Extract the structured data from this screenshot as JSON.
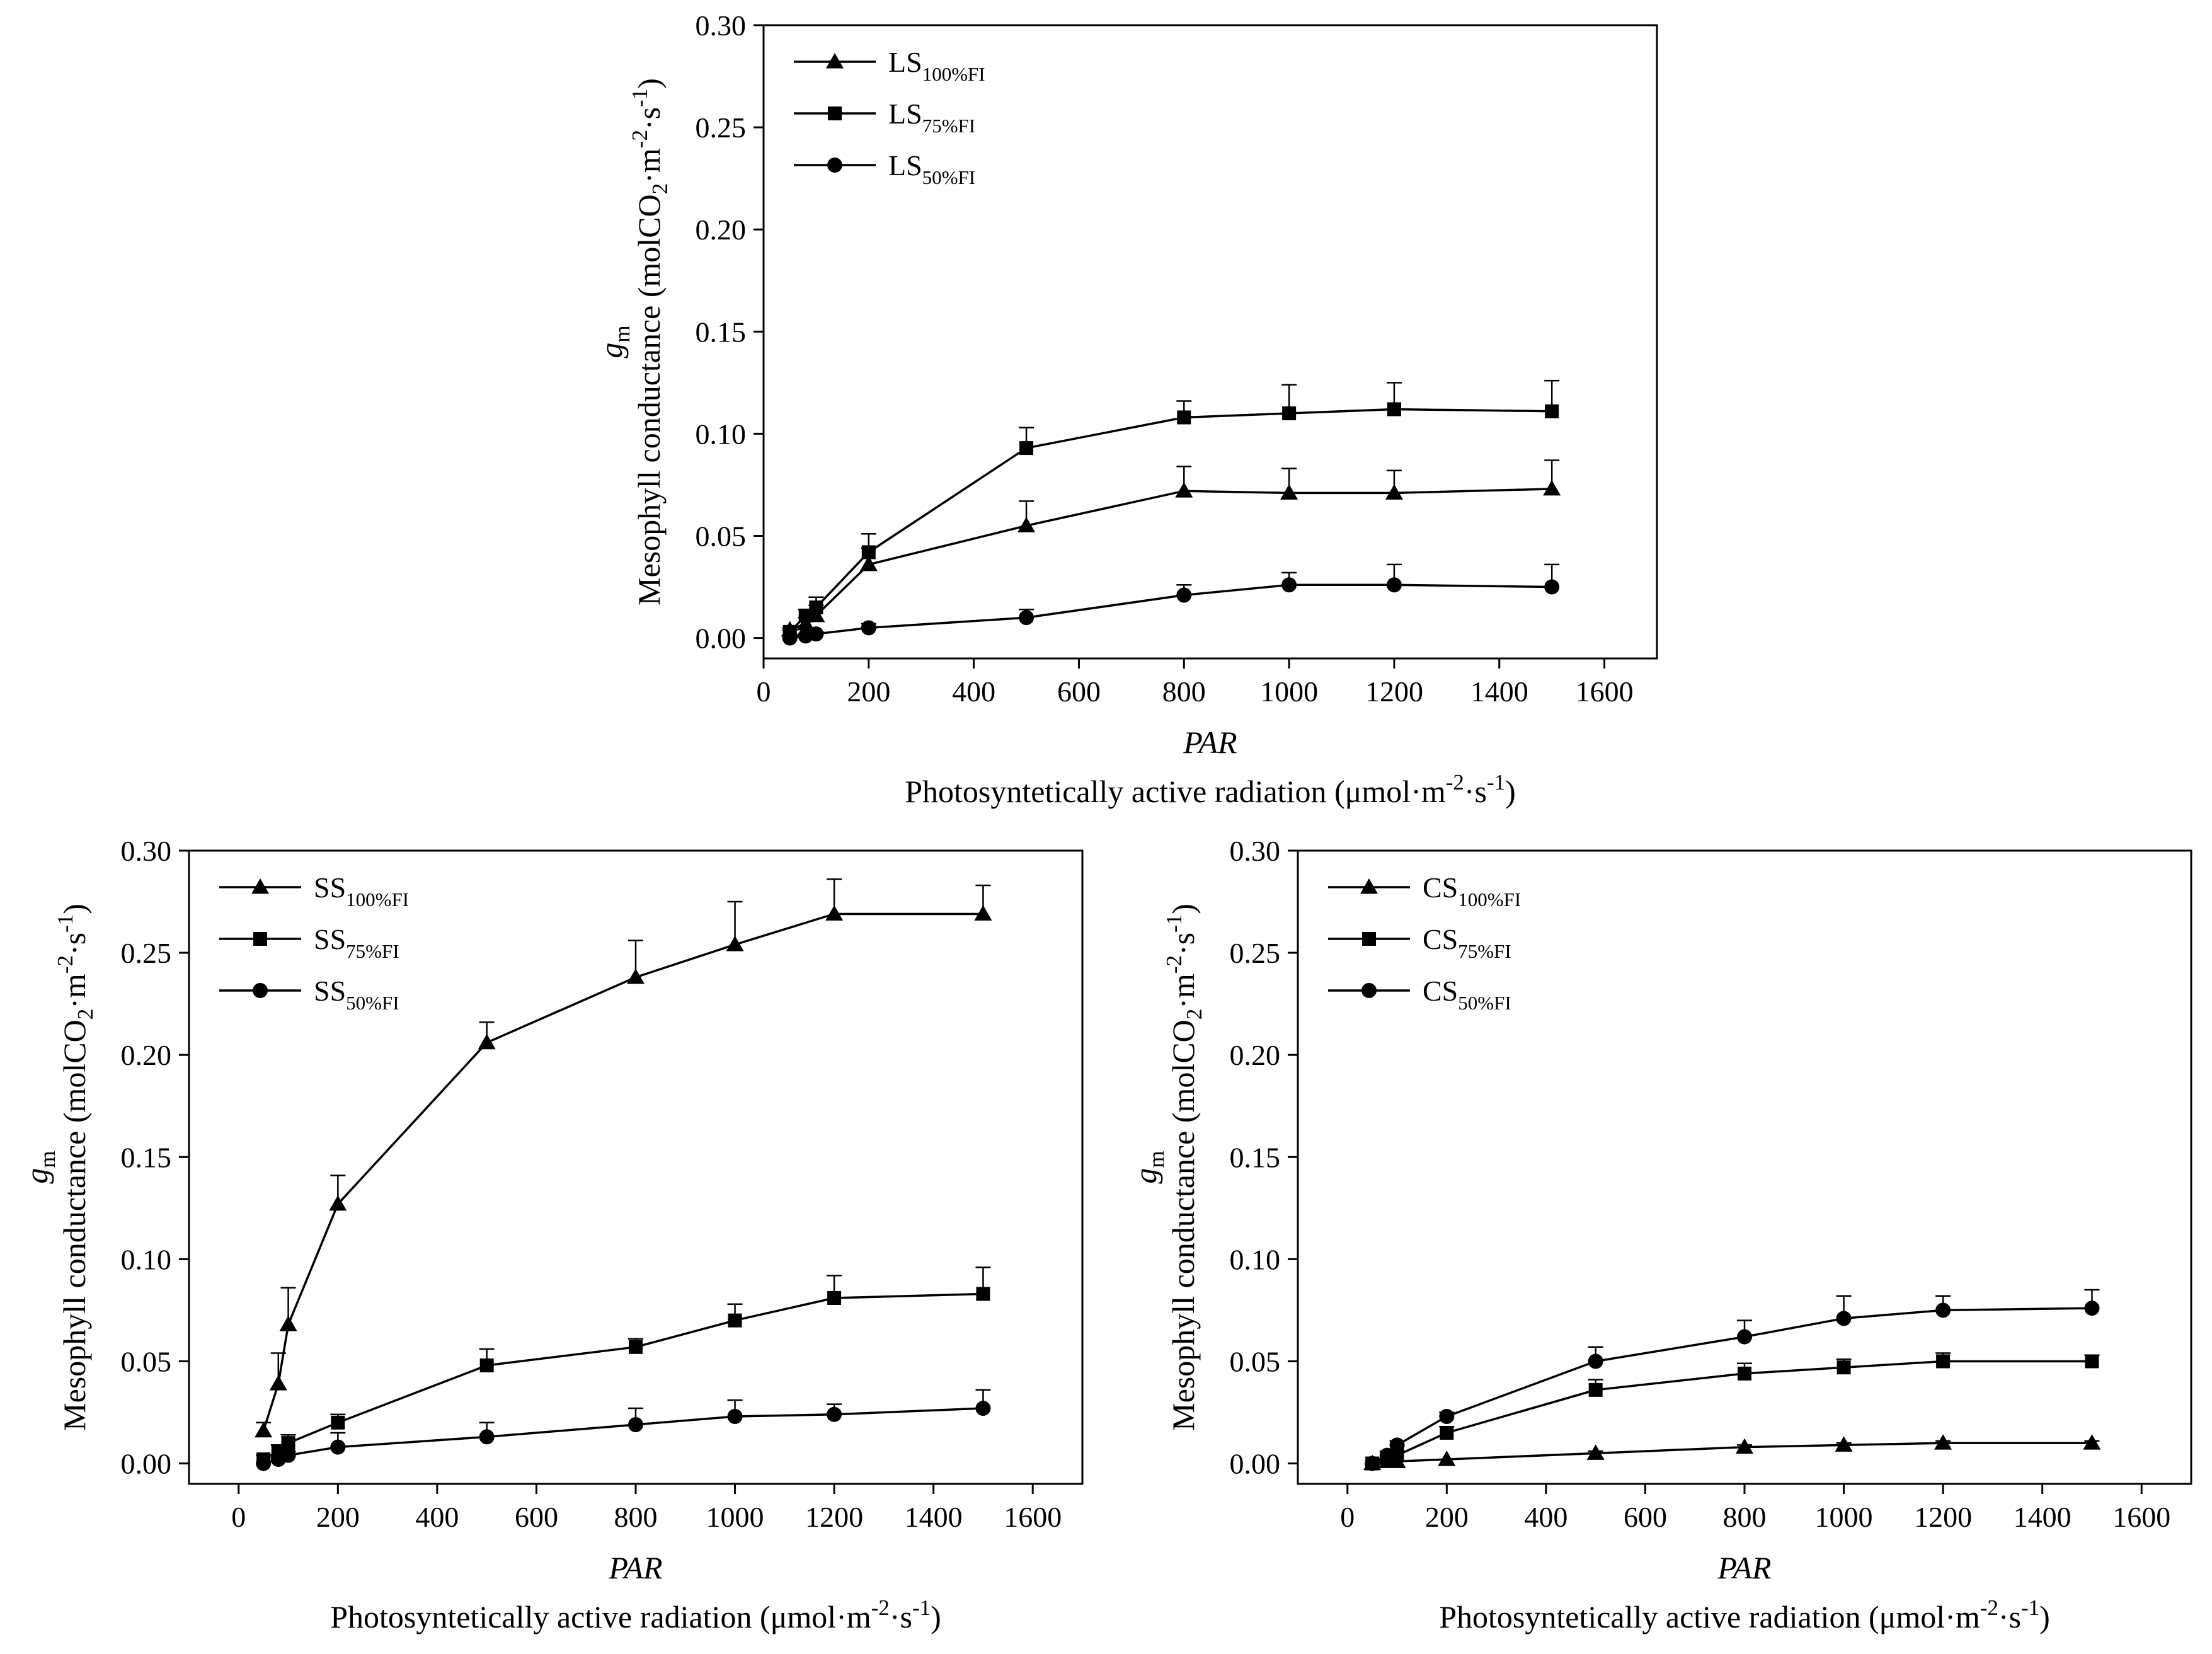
{
  "chart_data": [
    {
      "id": "ls",
      "type": "line",
      "xlim": [
        0,
        1700
      ],
      "ylim": [
        -0.01,
        0.3
      ],
      "xticks": [
        0,
        200,
        400,
        600,
        800,
        1000,
        1200,
        1400,
        1600
      ],
      "yticks": [
        0.0,
        0.05,
        0.1,
        0.15,
        0.2,
        0.25,
        0.3
      ],
      "xlabel_var": "PAR",
      "xlabel_desc": "Photosyntetically active radiation (μmol·m",
      "xlabel_unit_sup1": "-2",
      "xlabel_unit_mid": "·s",
      "xlabel_unit_sup2": "-1",
      "xlabel_close": ")",
      "ylabel_symbol": "g",
      "ylabel_symbol_sub": "m",
      "ylabel_desc": "Mesophyll conductance (molCO",
      "ylabel_sub": "2",
      "ylabel_mid": "·m",
      "ylabel_sup1": "-2",
      "ylabel_mid2": "·s",
      "ylabel_sup2": "-1",
      "ylabel_close": ")",
      "legend_position": "top-left",
      "x": [
        50,
        80,
        100,
        200,
        500,
        800,
        1000,
        1200,
        1500
      ],
      "series": [
        {
          "prefix": "LS",
          "sub": "100%FI",
          "marker": "triangle",
          "values": [
            0.004,
            0.007,
            0.011,
            0.036,
            0.055,
            0.072,
            0.071,
            0.071,
            0.073
          ],
          "errors": [
            0.001,
            0.003,
            0.005,
            0.008,
            0.012,
            0.012,
            0.012,
            0.011,
            0.014
          ]
        },
        {
          "prefix": "LS",
          "sub": "75%FI",
          "marker": "square",
          "values": [
            0.003,
            0.011,
            0.015,
            0.042,
            0.093,
            0.108,
            0.11,
            0.112,
            0.111
          ],
          "errors": [
            0.001,
            0.003,
            0.005,
            0.009,
            0.01,
            0.008,
            0.014,
            0.013,
            0.015
          ]
        },
        {
          "prefix": "LS",
          "sub": "50%FI",
          "marker": "circle",
          "values": [
            0.0,
            0.001,
            0.002,
            0.005,
            0.01,
            0.021,
            0.026,
            0.026,
            0.025
          ],
          "errors": [
            0.0,
            0.001,
            0.001,
            0.002,
            0.004,
            0.005,
            0.006,
            0.01,
            0.011
          ]
        }
      ]
    },
    {
      "id": "ss",
      "type": "line",
      "xlim": [
        -100,
        1700
      ],
      "ylim": [
        -0.01,
        0.3
      ],
      "xticks": [
        0,
        200,
        400,
        600,
        800,
        1000,
        1200,
        1400,
        1600
      ],
      "yticks": [
        0.0,
        0.05,
        0.1,
        0.15,
        0.2,
        0.25,
        0.3
      ],
      "xlabel_var": "PAR",
      "xlabel_desc": "Photosyntetically active radiation (μmol·m",
      "xlabel_unit_sup1": "-2",
      "xlabel_unit_mid": "·s",
      "xlabel_unit_sup2": "-1",
      "xlabel_close": ")",
      "ylabel_symbol": "g",
      "ylabel_symbol_sub": "m",
      "ylabel_desc": "Mesophyll conductance (molCO",
      "ylabel_sub": "2",
      "ylabel_mid": "·m",
      "ylabel_sup1": "-2",
      "ylabel_mid2": "·s",
      "ylabel_sup2": "-1",
      "ylabel_close": ")",
      "legend_position": "top-left",
      "x": [
        50,
        80,
        100,
        200,
        500,
        800,
        1000,
        1200,
        1500
      ],
      "series": [
        {
          "prefix": "SS",
          "sub": "100%FI",
          "marker": "triangle",
          "values": [
            0.016,
            0.039,
            0.068,
            0.127,
            0.206,
            0.238,
            0.254,
            0.269,
            0.269
          ],
          "errors": [
            0.004,
            0.015,
            0.018,
            0.014,
            0.01,
            0.018,
            0.021,
            0.017,
            0.014
          ]
        },
        {
          "prefix": "SS",
          "sub": "75%FI",
          "marker": "square",
          "values": [
            0.002,
            0.006,
            0.01,
            0.02,
            0.048,
            0.057,
            0.07,
            0.081,
            0.083
          ],
          "errors": [
            0.002,
            0.003,
            0.004,
            0.004,
            0.008,
            0.004,
            0.008,
            0.011,
            0.013
          ]
        },
        {
          "prefix": "SS",
          "sub": "50%FI",
          "marker": "circle",
          "values": [
            0.0,
            0.002,
            0.004,
            0.008,
            0.013,
            0.019,
            0.023,
            0.024,
            0.027
          ],
          "errors": [
            0.0,
            0.001,
            0.002,
            0.007,
            0.007,
            0.008,
            0.008,
            0.005,
            0.009
          ]
        }
      ]
    },
    {
      "id": "cs",
      "type": "line",
      "xlim": [
        -100,
        1700
      ],
      "ylim": [
        -0.01,
        0.3
      ],
      "xticks": [
        0,
        200,
        400,
        600,
        800,
        1000,
        1200,
        1400,
        1600
      ],
      "yticks": [
        0.0,
        0.05,
        0.1,
        0.15,
        0.2,
        0.25,
        0.3
      ],
      "xlabel_var": "PAR",
      "xlabel_desc": "Photosyntetically active radiation (μmol·m",
      "xlabel_unit_sup1": "-2",
      "xlabel_unit_mid": "·s",
      "xlabel_unit_sup2": "-1",
      "xlabel_close": ")",
      "ylabel_symbol": "g",
      "ylabel_symbol_sub": "m",
      "ylabel_desc": "Mesophyll conductance (molCO",
      "ylabel_sub": "2",
      "ylabel_mid": "·m",
      "ylabel_sup1": "-2",
      "ylabel_mid2": "·s",
      "ylabel_sup2": "-1",
      "ylabel_close": ")",
      "legend_position": "top-left",
      "x": [
        50,
        80,
        100,
        200,
        500,
        800,
        1000,
        1200,
        1500
      ],
      "series": [
        {
          "prefix": "CS",
          "sub": "100%FI",
          "marker": "triangle",
          "values": [
            0.0,
            0.001,
            0.001,
            0.002,
            0.005,
            0.008,
            0.009,
            0.01,
            0.01
          ],
          "errors": [
            0.0,
            0.0,
            0.0,
            0.0,
            0.001,
            0.001,
            0.001,
            0.001,
            0.001
          ]
        },
        {
          "prefix": "CS",
          "sub": "75%FI",
          "marker": "square",
          "values": [
            0.0,
            0.002,
            0.004,
            0.015,
            0.036,
            0.044,
            0.047,
            0.05,
            0.05
          ],
          "errors": [
            0.0,
            0.001,
            0.002,
            0.003,
            0.005,
            0.005,
            0.004,
            0.004,
            0.003
          ]
        },
        {
          "prefix": "CS",
          "sub": "50%FI",
          "marker": "circle",
          "values": [
            0.0,
            0.004,
            0.009,
            0.023,
            0.05,
            0.062,
            0.071,
            0.075,
            0.076
          ],
          "errors": [
            0.0,
            0.002,
            0.002,
            0.002,
            0.007,
            0.008,
            0.011,
            0.007,
            0.009
          ]
        }
      ]
    }
  ]
}
